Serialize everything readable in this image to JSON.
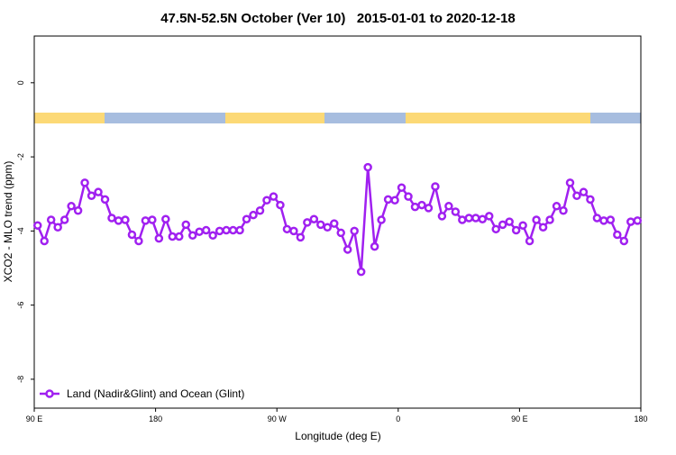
{
  "chart_data": {
    "type": "line",
    "title": "47.5N-52.5N October (Ver 10)   2015-01-01 to 2020-12-18",
    "xlabel": "Longitude (deg E)",
    "ylabel": "XCO2 - MLO trend (ppm)",
    "xlim": [
      90,
      540
    ],
    "ylim": [
      -8.78,
      1.26
    ],
    "xticks": [
      {
        "value": 90,
        "label": "90 E"
      },
      180,
      {
        "value": 270,
        "label": "90 W"
      },
      {
        "value": 360,
        "label": "0"
      },
      {
        "value": 450,
        "label": "90 E"
      },
      {
        "value": 540,
        "label": "180"
      }
    ],
    "yticks": [
      0,
      -2,
      -4,
      -6,
      -8
    ],
    "legend": "bottom-left",
    "x": [
      92.5,
      97.5,
      102.5,
      107.5,
      112.5,
      117.5,
      122.5,
      127.5,
      132.5,
      137.5,
      142.5,
      147.5,
      152.5,
      157.5,
      162.5,
      167.5,
      172.5,
      177.5,
      182.5,
      187.5,
      192.5,
      197.5,
      202.5,
      207.5,
      212.5,
      217.5,
      222.5,
      227.5,
      232.5,
      237.5,
      242.5,
      247.5,
      252.5,
      257.5,
      262.5,
      267.5,
      272.5,
      277.5,
      282.5,
      287.5,
      292.5,
      297.5,
      302.5,
      307.5,
      312.5,
      317.5,
      322.5,
      327.5,
      332.5,
      337.5,
      342.5,
      347.5,
      352.5,
      357.5,
      362.5,
      367.5,
      372.5,
      377.5,
      382.5,
      387.5,
      392.5,
      397.5,
      402.5,
      407.5,
      412.5,
      417.5,
      422.5,
      427.5,
      432.5,
      437.5,
      442.5,
      447.5,
      452.5,
      457.5,
      462.5,
      467.5,
      472.5,
      477.5,
      482.5,
      487.5,
      492.5,
      497.5,
      502.5,
      507.5,
      512.5,
      517.5,
      522.5,
      527.5,
      532.5,
      537.5
    ],
    "series": [
      {
        "name": "Land (Nadir&Glint) and Ocean (Glint)",
        "color": "#a020f0",
        "values": [
          -3.85,
          -4.27,
          -3.7,
          -3.9,
          -3.7,
          -3.33,
          -3.45,
          -2.7,
          -3.05,
          -2.95,
          -3.15,
          -3.65,
          -3.72,
          -3.7,
          -4.1,
          -4.27,
          -3.72,
          -3.7,
          -4.2,
          -3.68,
          -4.15,
          -4.15,
          -3.83,
          -4.12,
          -4.02,
          -3.98,
          -4.12,
          -4.0,
          -3.98,
          -3.98,
          -3.98,
          -3.68,
          -3.57,
          -3.45,
          -3.17,
          -3.07,
          -3.3,
          -3.95,
          -4.0,
          -4.17,
          -3.77,
          -3.68,
          -3.83,
          -3.9,
          -3.8,
          -4.05,
          -4.5,
          -4.0,
          -5.1,
          -2.28,
          -4.42,
          -3.7,
          -3.15,
          -3.17,
          -2.83,
          -3.07,
          -3.35,
          -3.3,
          -3.38,
          -2.8,
          -3.6,
          -3.33,
          -3.48,
          -3.7,
          -3.65,
          -3.65,
          -3.68,
          -3.6,
          -3.95,
          -3.83,
          -3.75,
          -3.98,
          -3.85,
          -4.27,
          -3.7,
          -3.9,
          -3.7,
          -3.33,
          -3.45,
          -2.7,
          -3.05,
          -2.95,
          -3.15,
          -3.65,
          -3.72,
          -3.7,
          -4.1,
          -4.27,
          -3.75,
          -3.72
        ]
      }
    ]
  }
}
